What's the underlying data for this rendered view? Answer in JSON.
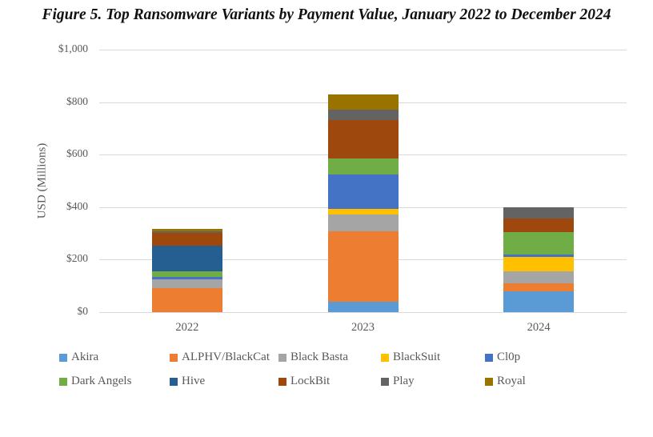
{
  "title": "Figure 5. Top Ransomware Variants by Payment Value, January 2022 to December 2024",
  "axis": {
    "ylabel": "USD (Millions)",
    "yticks": [
      "$0",
      "$200",
      "$400",
      "$600",
      "$800",
      "$1,000"
    ],
    "xticks": [
      "2022",
      "2023",
      "2024"
    ]
  },
  "legend": [
    {
      "name": "Akira",
      "color": "#5B9BD5"
    },
    {
      "name": "ALPHV/BlackCat",
      "color": "#ED7D31"
    },
    {
      "name": "Black Basta",
      "color": "#A5A5A5"
    },
    {
      "name": "BlackSuit",
      "color": "#FFC000"
    },
    {
      "name": "Cl0p",
      "color": "#4472C4"
    },
    {
      "name": "Dark Angels",
      "color": "#70AD47"
    },
    {
      "name": "Hive",
      "color": "#255E91"
    },
    {
      "name": "LockBit",
      "color": "#9E480E"
    },
    {
      "name": "Play",
      "color": "#636363"
    },
    {
      "name": "Royal",
      "color": "#997300"
    }
  ],
  "chart_data": {
    "type": "bar",
    "stacked": true,
    "title": "Figure 5. Top Ransomware Variants by Payment Value, January 2022 to December 2024",
    "xlabel": "",
    "ylabel": "USD (Millions)",
    "ylim": [
      0,
      1000
    ],
    "yticks": [
      0,
      200,
      400,
      600,
      800,
      1000
    ],
    "grid": true,
    "legend_position": "bottom",
    "categories": [
      "2022",
      "2023",
      "2024"
    ],
    "series": [
      {
        "name": "Akira",
        "color": "#5B9BD5",
        "values": [
          0,
          40,
          79
        ]
      },
      {
        "name": "ALPHV/BlackCat",
        "color": "#ED7D31",
        "values": [
          91,
          268,
          30
        ]
      },
      {
        "name": "Black Basta",
        "color": "#A5A5A5",
        "values": [
          34,
          64,
          46
        ]
      },
      {
        "name": "BlackSuit",
        "color": "#FFC000",
        "values": [
          0,
          20,
          55
        ]
      },
      {
        "name": "Cl0p",
        "color": "#4472C4",
        "values": [
          9,
          131,
          9
        ]
      },
      {
        "name": "Dark Angels",
        "color": "#70AD47",
        "values": [
          21,
          61,
          85
        ]
      },
      {
        "name": "Hive",
        "color": "#255E91",
        "values": [
          98,
          0,
          0
        ]
      },
      {
        "name": "LockBit",
        "color": "#9E480E",
        "values": [
          49,
          149,
          52
        ]
      },
      {
        "name": "Play",
        "color": "#636363",
        "values": [
          6,
          37,
          43
        ]
      },
      {
        "name": "Royal",
        "color": "#997300",
        "values": [
          9,
          58,
          0
        ]
      }
    ]
  }
}
